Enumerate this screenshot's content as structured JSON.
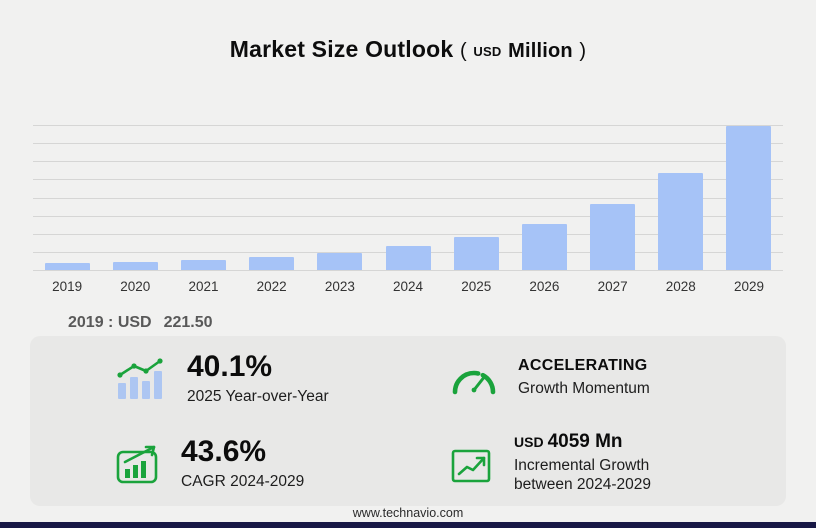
{
  "title": {
    "main": "Market Size Outlook",
    "open_paren": "(",
    "unit_currency": "USD",
    "unit_name": "Million",
    "close_paren": ")"
  },
  "chart_data": {
    "type": "bar",
    "title": "Market Size Outlook (USD Million)",
    "categories": [
      "2019",
      "2020",
      "2021",
      "2022",
      "2023",
      "2024",
      "2025",
      "2026",
      "2027",
      "2028",
      "2029"
    ],
    "values": [
      221.5,
      255,
      330,
      430,
      575,
      795,
      1114,
      1560,
      2230,
      3270,
      4854
    ],
    "xlabel": "",
    "ylabel": "",
    "ylim": [
      0,
      4900
    ],
    "gridlines": 9,
    "legend": "none",
    "bar_color": "#a6c3f7",
    "grid_color": "#d6d6d5"
  },
  "annotation_2019": {
    "label": "2019 : USD",
    "value": "221.50"
  },
  "stats": {
    "yoy": {
      "icon": "bar-trend-icon",
      "value": "40.1%",
      "label": "2025 Year-over-Year"
    },
    "momentum": {
      "icon": "speedometer-icon",
      "value": "ACCELERATING",
      "label": "Growth Momentum"
    },
    "cagr": {
      "icon": "cagr-chart-icon",
      "value": "43.6%",
      "label": "CAGR 2024-2029"
    },
    "incremental": {
      "icon": "growth-arrow-icon",
      "currency": "USD",
      "value": "4059 Mn",
      "label_line1": "Incremental Growth",
      "label_line2": "between 2024-2029"
    }
  },
  "footer": {
    "url": "www.technavio.com"
  },
  "colors": {
    "page_bg": "#f1f1f0",
    "panel_bg": "#e8e8e7",
    "bar_blue": "#a6c3f7",
    "accent_green": "#1aa33c",
    "annotation_gray": "#595959",
    "bottom_bar_navy": "#181846"
  }
}
